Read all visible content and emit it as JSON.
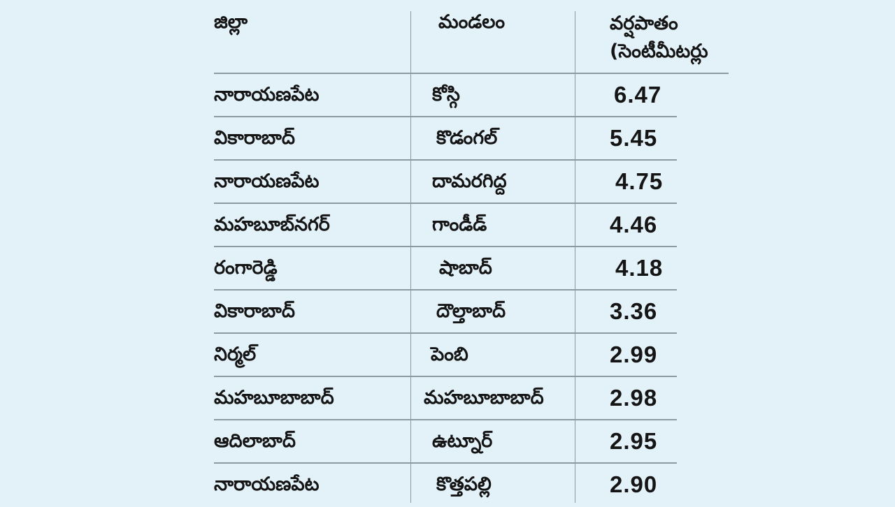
{
  "table": {
    "headers": {
      "district": "జిల్లా",
      "mandal": "మండలం",
      "rainfall": "వర్షపాతం (సెంటీమీటర్లు"
    },
    "rows": [
      {
        "district": "నారాయణపేట",
        "mandal": "కోస్గి",
        "rainfall": "6.47"
      },
      {
        "district": "వికారాబాద్",
        "mandal": "కొడంగల్",
        "rainfall": "5.45"
      },
      {
        "district": "నారాయణపేట",
        "mandal": "దామరగిద్ద",
        "rainfall": "4.75"
      },
      {
        "district": "మహబూబ్‌నగర్",
        "mandal": "గాండీడ్",
        "rainfall": "4.46"
      },
      {
        "district": "రంగారెడ్డి",
        "mandal": "షాబాద్",
        "rainfall": "4.18"
      },
      {
        "district": "వికారాబాద్",
        "mandal": "దౌల్తాబాద్",
        "rainfall": "3.36"
      },
      {
        "district": "నిర్మల్",
        "mandal": "పెంబి",
        "rainfall": "2.99"
      },
      {
        "district": "మహబూబాబాద్",
        "mandal": "మహబూబాబాద్",
        "rainfall": "2.98"
      },
      {
        "district": "ఆదిలాబాద్",
        "mandal": "ఉట్నూర్",
        "rainfall": "2.95"
      },
      {
        "district": "నారాయణపేట",
        "mandal": "కొత్తపల్లి",
        "rainfall": "2.90"
      }
    ]
  }
}
